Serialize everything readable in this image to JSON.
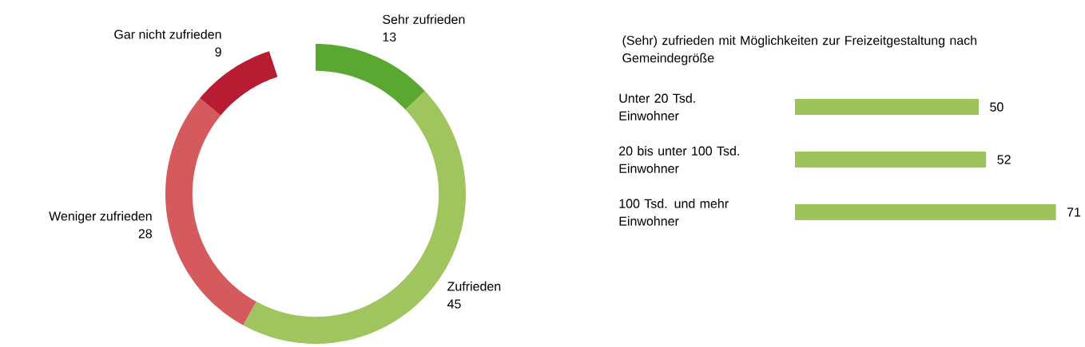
{
  "chart_data": [
    {
      "type": "donut",
      "categories": [
        "Sehr zufrieden",
        "Zufrieden",
        "Weniger zufrieden",
        "Gar nicht zufrieden"
      ],
      "values": [
        13,
        45,
        28,
        9
      ],
      "colors": [
        "#5aa832",
        "#a0c45e",
        "#d45a5e",
        "#b81c33"
      ],
      "data_labels": true
    },
    {
      "type": "bar",
      "orientation": "horizontal",
      "title": "(Sehr) zufrieden mit Möglichkeiten zur Freizeitgestaltung nach Gemeindegröße",
      "categories": [
        "Unter 20 Tsd. Einwohner",
        "20 bis unter 100 Tsd. Einwohner",
        "100 Tsd. und mehr Einwohner"
      ],
      "values": [
        50,
        52,
        71
      ],
      "color": "#9dc35a",
      "data_labels": true
    }
  ]
}
